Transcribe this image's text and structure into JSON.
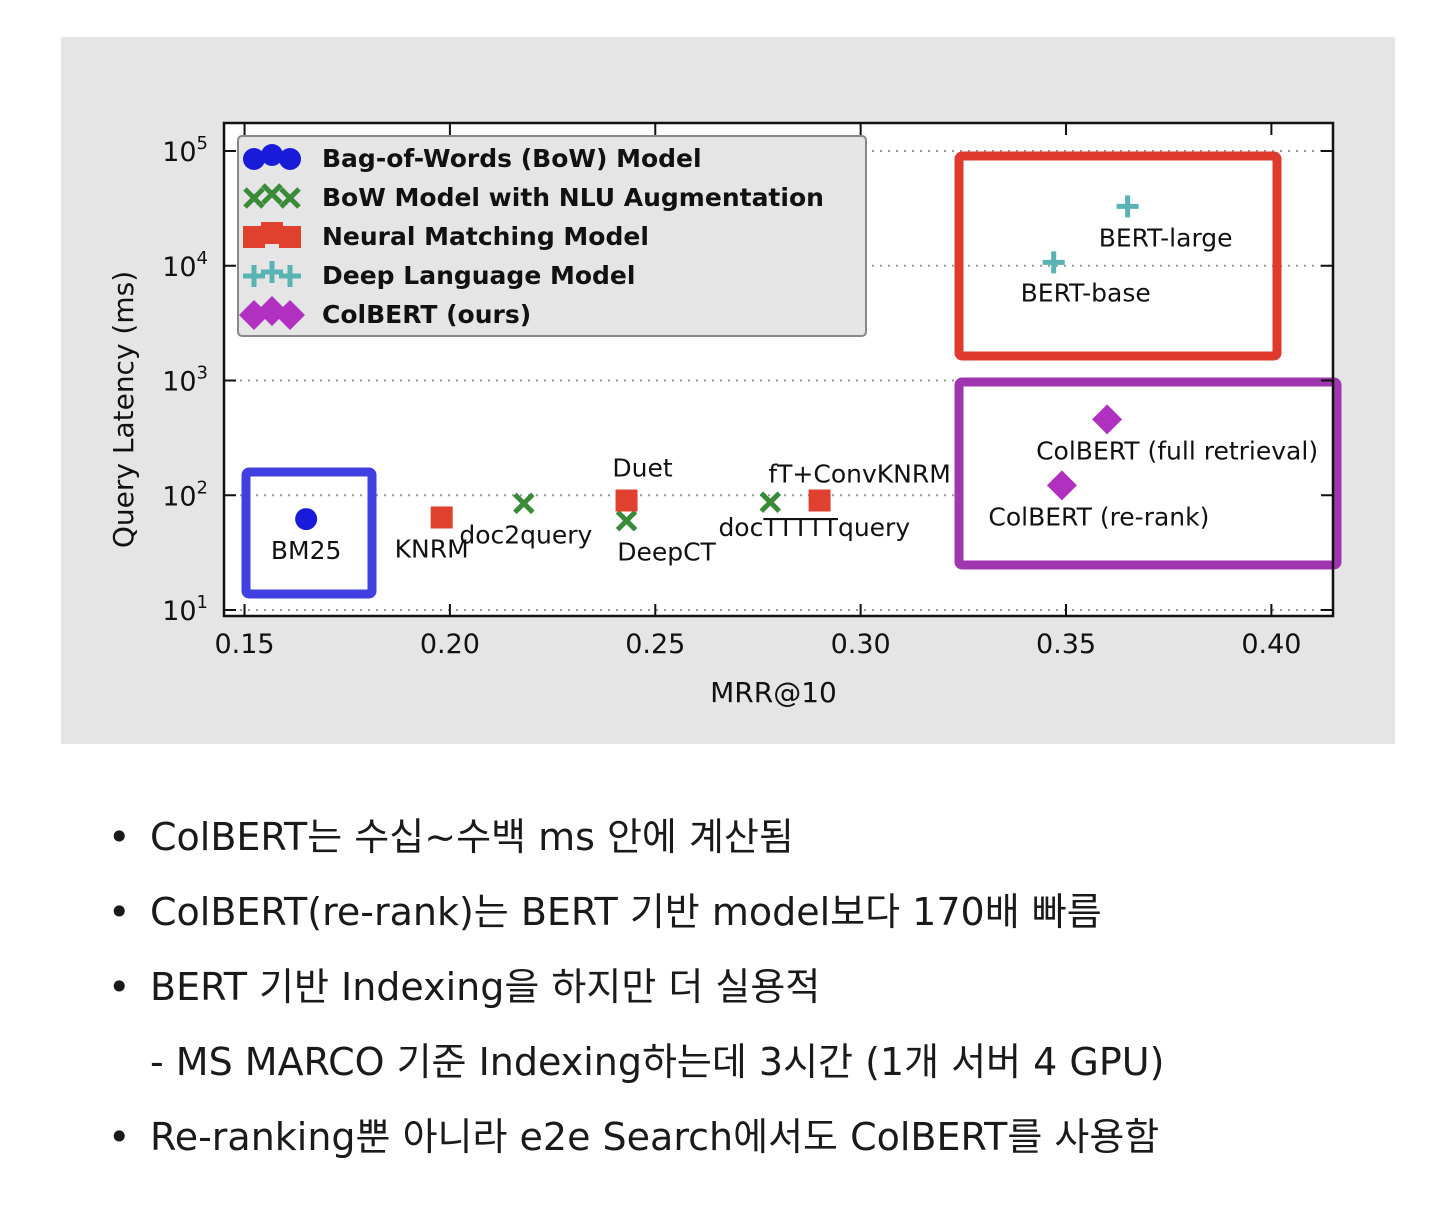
{
  "chart_data": {
    "type": "scatter",
    "xlabel": "MRR@10",
    "ylabel": "Query Latency (ms)",
    "xlim": [
      0.145,
      0.415
    ],
    "ylim": [
      10,
      100000
    ],
    "y_scale": "log",
    "x_ticks": [
      "0.15",
      "0.20",
      "0.25",
      "0.30",
      "0.35",
      "0.40"
    ],
    "x_tick_values": [
      0.15,
      0.2,
      0.25,
      0.3,
      0.35,
      0.4
    ],
    "y_ticks": [
      {
        "base": "10",
        "exp": "1",
        "value": 10
      },
      {
        "base": "10",
        "exp": "2",
        "value": 100
      },
      {
        "base": "10",
        "exp": "3",
        "value": 1000
      },
      {
        "base": "10",
        "exp": "4",
        "value": 10000
      },
      {
        "base": "10",
        "exp": "5",
        "value": 100000
      }
    ],
    "grid": "horizontal dotted",
    "legend_position": "top-left",
    "series": [
      {
        "name": "Bag-of-Words (BoW) Model",
        "marker": "circle",
        "color": "#1a1adb",
        "points": [
          {
            "label": "BM25",
            "x": 0.165,
            "y": 62
          }
        ]
      },
      {
        "name": "BoW Model with NLU Augmentation",
        "marker": "x",
        "color": "#3a8a3a",
        "points": [
          {
            "label": "doc2query",
            "x": 0.218,
            "y": 85
          },
          {
            "label": "DeepCT",
            "x": 0.243,
            "y": 60
          },
          {
            "label": "docTTTTTquery",
            "x": 0.278,
            "y": 87
          }
        ]
      },
      {
        "name": "Neural Matching Model",
        "marker": "square",
        "color": "#e0402e",
        "points": [
          {
            "label": "KNRM",
            "x": 0.198,
            "y": 64
          },
          {
            "label": "Duet",
            "x": 0.243,
            "y": 90
          },
          {
            "label": "fT+ConvKNRM",
            "x": 0.29,
            "y": 90
          }
        ]
      },
      {
        "name": "Deep Language Model",
        "marker": "plus",
        "color": "#5ab3b3",
        "points": [
          {
            "label": "BERT-base",
            "x": 0.347,
            "y": 10700
          },
          {
            "label": "BERT-large",
            "x": 0.365,
            "y": 32900
          }
        ]
      },
      {
        "name": "ColBERT (ours)",
        "marker": "diamond",
        "color": "#b030c0",
        "points": [
          {
            "label": "ColBERT (full retrieval)",
            "x": 0.36,
            "y": 458
          },
          {
            "label": "ColBERT (re-rank)",
            "x": 0.349,
            "y": 122
          }
        ]
      }
    ]
  },
  "highlight_colors": {
    "bow": "#4040e0",
    "deep": "#e03a2e",
    "colbert": "#a035b0"
  },
  "bullets": [
    {
      "text": "ColBERT는 수십~수백 ms 안에 계산됨"
    },
    {
      "text": "ColBERT(re-rank)는 BERT 기반 model보다 170배 빠름"
    },
    {
      "text": "BERT 기반 Indexing을 하지만 더 실용적"
    },
    {
      "text": "- MS MARCO 기준 Indexing하는데 3시간 (1개 서버 4 GPU)",
      "sub": true
    },
    {
      "text": "Re-ranking뿐 아니라 e2e Search에서도 ColBERT를 사용함"
    }
  ],
  "bullet_symbol": "•"
}
